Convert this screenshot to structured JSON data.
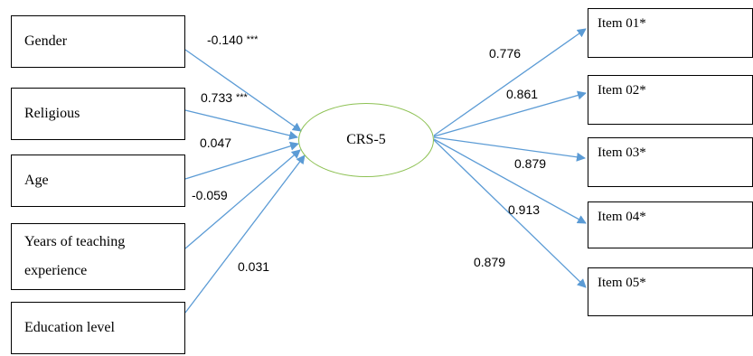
{
  "predictors": [
    {
      "label": "Gender"
    },
    {
      "label": "Religious"
    },
    {
      "label": "Age"
    },
    {
      "label_lines": [
        "Years of teaching",
        "experience"
      ]
    },
    {
      "label": "Education level"
    }
  ],
  "predictor_coefficients": [
    {
      "value": "-0.140",
      "sig": "***"
    },
    {
      "value": "0.733",
      "sig": "***"
    },
    {
      "value": "0.047"
    },
    {
      "value": "-0.059"
    },
    {
      "value": "0.031"
    }
  ],
  "construct": {
    "label": "CRS-5",
    "stroke_color": "#8dc153"
  },
  "items": [
    {
      "label": "Item 01*"
    },
    {
      "label": "Item 02*"
    },
    {
      "label": "Item 03*"
    },
    {
      "label": "Item 04*"
    },
    {
      "label": "Item 05*"
    }
  ],
  "loadings": [
    "0.776",
    "0.861",
    "0.879",
    "0.913",
    "0.879"
  ],
  "arrow_color": "#5b9bd5"
}
